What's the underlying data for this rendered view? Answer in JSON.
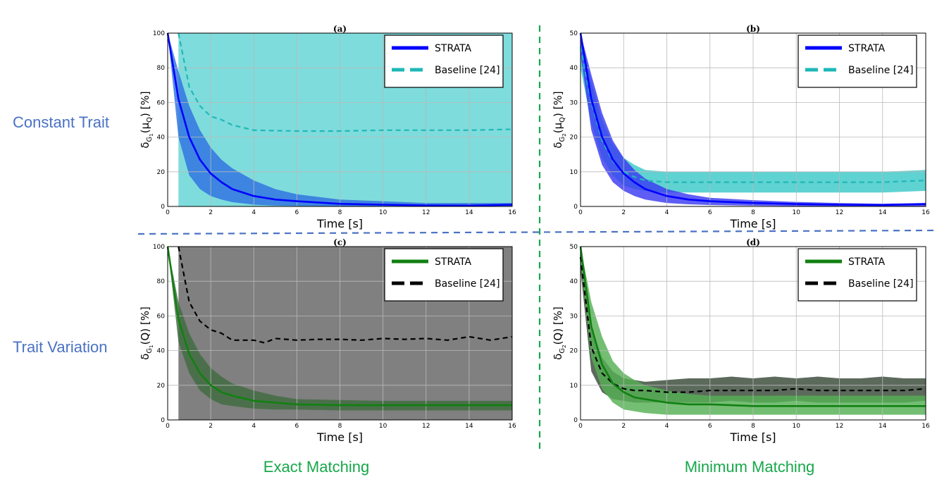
{
  "row_labels": [
    "Constant Trait",
    "Trait Variation"
  ],
  "column_labels": [
    "Exact Matching",
    "Minimum Matching"
  ],
  "chart_data": [
    {
      "id": "a",
      "type": "line",
      "title": "(a)",
      "xlabel": "Time [s]",
      "ylabel": "δ_{G_1}(μ_Q) [%]",
      "xlim": [
        0,
        16
      ],
      "ylim": [
        0,
        100
      ],
      "xticks": [
        0,
        2,
        4,
        6,
        8,
        10,
        12,
        14,
        16
      ],
      "yticks": [
        0,
        20,
        40,
        60,
        80,
        100
      ],
      "grid": true,
      "legend_position": "top-right",
      "series": [
        {
          "name": "STRATA",
          "style": "solid",
          "color": "#0000ff",
          "band_color": "#2e72e0",
          "x": [
            0,
            0.5,
            1,
            1.5,
            2,
            2.5,
            3,
            4,
            5,
            6,
            8,
            10,
            12,
            14,
            16
          ],
          "y": [
            100,
            62,
            40,
            27,
            19,
            14,
            10,
            6,
            4,
            3,
            1.5,
            1,
            0.6,
            0.5,
            1
          ],
          "lower": [
            100,
            40,
            18,
            10,
            6,
            4,
            2.5,
            1,
            0.5,
            0.3,
            0.2,
            0.1,
            0.1,
            0.1,
            0.2
          ],
          "upper": [
            100,
            78,
            58,
            44,
            34,
            27,
            22,
            15,
            10,
            7,
            4,
            3,
            2,
            2,
            2
          ]
        },
        {
          "name": "Baseline [24]",
          "style": "dashed",
          "color": "#1fb8b8",
          "band_color": "#7fdcdc",
          "x": [
            0.5,
            1,
            1.5,
            2,
            2.5,
            3,
            4,
            6,
            8,
            10,
            12,
            14,
            16
          ],
          "y": [
            100,
            69,
            58,
            52,
            50,
            47,
            44,
            43.5,
            43.5,
            44,
            44,
            44,
            44.5
          ],
          "lower": [
            0,
            0,
            0,
            0,
            0,
            0,
            0,
            0,
            0,
            0,
            0,
            0,
            0
          ],
          "upper": [
            100,
            100,
            100,
            100,
            100,
            100,
            100,
            100,
            100,
            100,
            100,
            100,
            100
          ]
        }
      ]
    },
    {
      "id": "b",
      "type": "line",
      "title": "(b)",
      "xlabel": "Time [s]",
      "ylabel": "δ_{G_2}(μ_Q) [%]",
      "xlim": [
        0,
        16
      ],
      "ylim": [
        0,
        50
      ],
      "xticks": [
        0,
        2,
        4,
        6,
        8,
        10,
        12,
        14,
        16
      ],
      "yticks": [
        0,
        10,
        20,
        30,
        40,
        50
      ],
      "grid": true,
      "legend_position": "top-right",
      "series": [
        {
          "name": "STRATA",
          "style": "solid",
          "color": "#0000ff",
          "band_color": "#3b3bf2",
          "x": [
            0,
            0.5,
            1,
            1.5,
            2,
            2.5,
            3,
            4,
            5,
            6,
            8,
            10,
            12,
            14,
            16
          ],
          "y": [
            50,
            31,
            20,
            13.5,
            9.5,
            7,
            5,
            3,
            2,
            1.5,
            1,
            0.7,
            0.5,
            0.4,
            0.7
          ],
          "lower": [
            44,
            22,
            12,
            7,
            4.5,
            3,
            2,
            1,
            0.6,
            0.4,
            0.2,
            0.1,
            0.1,
            0.1,
            0.1
          ],
          "upper": [
            50,
            38,
            27,
            19,
            14,
            10.5,
            8,
            5,
            3.5,
            2.5,
            1.8,
            1.3,
            1,
            0.8,
            1
          ]
        },
        {
          "name": "Baseline [24]",
          "style": "dashed",
          "color": "#1fb8b8",
          "band_color": "#5fd2d2",
          "x": [
            0,
            0.5,
            1,
            1.5,
            2,
            2.5,
            3,
            4,
            6,
            8,
            10,
            12,
            14,
            16
          ],
          "y": [
            46,
            30,
            19,
            13,
            10,
            8.5,
            7.5,
            7,
            7,
            7,
            7,
            7,
            7,
            7.5
          ],
          "lower": [
            40,
            24,
            14,
            9,
            6,
            5,
            4.5,
            4,
            4,
            4,
            4,
            4,
            4,
            4.5
          ],
          "upper": [
            50,
            36,
            25,
            18,
            14,
            12,
            10.5,
            10,
            10,
            10,
            10,
            10,
            10,
            10.5
          ]
        }
      ]
    },
    {
      "id": "c",
      "type": "line",
      "title": "(c)",
      "xlabel": "Time [s]",
      "ylabel": "δ_{G_1}(Q) [%]",
      "xlim": [
        0,
        16
      ],
      "ylim": [
        0,
        100
      ],
      "xticks": [
        0,
        2,
        4,
        6,
        8,
        10,
        12,
        14,
        16
      ],
      "yticks": [
        0,
        20,
        40,
        60,
        80,
        100
      ],
      "grid": true,
      "legend_position": "top-right",
      "series": [
        {
          "name": "STRATA",
          "style": "solid",
          "color": "#118011",
          "band_color": "#3f6b3f",
          "x": [
            0,
            0.5,
            1,
            1.5,
            2,
            2.5,
            3,
            4,
            5,
            6,
            8,
            10,
            12,
            14,
            16
          ],
          "y": [
            100,
            58,
            38,
            27,
            20,
            16,
            14,
            11,
            10,
            9,
            8.5,
            8.5,
            8.5,
            8.5,
            8.5
          ],
          "lower": [
            100,
            45,
            27,
            17,
            12,
            9,
            8,
            6.5,
            6,
            6,
            5.5,
            5.5,
            5.5,
            5.5,
            5.5
          ],
          "upper": [
            100,
            68,
            50,
            38,
            30,
            25,
            21,
            17,
            14,
            12,
            11.5,
            11,
            11,
            11,
            11
          ]
        },
        {
          "name": "Baseline [24]",
          "style": "dashed",
          "color": "#000000",
          "band_color": "#808080",
          "x": [
            0.5,
            1,
            1.5,
            2,
            2.5,
            3,
            4,
            4.5,
            5,
            6,
            7,
            8,
            9,
            10,
            11,
            12,
            13,
            14,
            15,
            16
          ],
          "y": [
            100,
            68,
            57,
            52,
            50,
            46,
            46,
            44.5,
            47,
            46,
            46.5,
            46.5,
            46,
            47,
            46.5,
            47,
            46,
            48,
            46,
            48
          ],
          "lower": [
            0,
            0,
            0,
            0,
            0,
            0,
            0,
            0,
            0,
            0,
            0,
            0,
            0,
            0,
            0,
            0,
            0,
            0,
            0,
            0
          ],
          "upper": [
            100,
            100,
            100,
            100,
            100,
            100,
            100,
            100,
            100,
            100,
            100,
            100,
            100,
            100,
            100,
            100,
            100,
            100,
            100,
            100
          ]
        }
      ]
    },
    {
      "id": "d",
      "type": "line",
      "title": "(d)",
      "xlabel": "Time [s]",
      "ylabel": "δ_{G_2}(Q) [%]",
      "xlim": [
        0,
        16
      ],
      "ylim": [
        0,
        50
      ],
      "xticks": [
        0,
        2,
        4,
        6,
        8,
        10,
        12,
        14,
        16
      ],
      "yticks": [
        0,
        10,
        20,
        30,
        40,
        50
      ],
      "grid": true,
      "legend_position": "top-right",
      "series": [
        {
          "name": "STRATA",
          "style": "solid",
          "color": "#118011",
          "band_color": "#55b055",
          "x": [
            0,
            0.5,
            1,
            1.5,
            2,
            2.5,
            3,
            4,
            5,
            6,
            8,
            10,
            12,
            14,
            16
          ],
          "y": [
            50,
            27,
            16,
            10.5,
            8,
            6.5,
            6,
            5,
            4.5,
            4.5,
            4,
            4,
            4,
            4,
            4
          ],
          "lower": [
            46,
            18,
            9,
            5,
            3,
            2.5,
            2,
            1.5,
            1.5,
            1.5,
            1.5,
            1.5,
            1.5,
            1.5,
            1.5
          ],
          "upper": [
            50,
            34,
            24,
            17,
            13.5,
            11.5,
            10,
            8.5,
            7.5,
            7,
            7,
            7,
            7,
            7,
            7
          ]
        },
        {
          "name": "Baseline [24]",
          "style": "dashed",
          "color": "#000000",
          "band_color": "#5c6a5c",
          "x": [
            0,
            0.5,
            1,
            1.5,
            2,
            2.5,
            3,
            4,
            5,
            6,
            7,
            8,
            9,
            10,
            11,
            12,
            13,
            14,
            15,
            16
          ],
          "y": [
            47,
            21,
            13.5,
            10.5,
            9,
            8.5,
            8.5,
            8,
            8,
            8.5,
            8.5,
            8.5,
            8.5,
            9,
            8.5,
            8.5,
            8.5,
            8.5,
            8.5,
            9
          ],
          "lower": [
            43,
            14,
            8,
            6,
            5.5,
            5,
            5,
            5,
            5,
            5,
            5.5,
            5,
            5,
            5.5,
            5,
            5,
            5,
            5,
            5,
            5.5
          ],
          "upper": [
            50,
            27,
            18,
            14,
            12,
            11.5,
            11,
            11.5,
            12,
            12,
            12.5,
            12,
            12.5,
            12,
            12.5,
            12,
            12,
            12.5,
            12,
            12
          ]
        }
      ]
    }
  ]
}
